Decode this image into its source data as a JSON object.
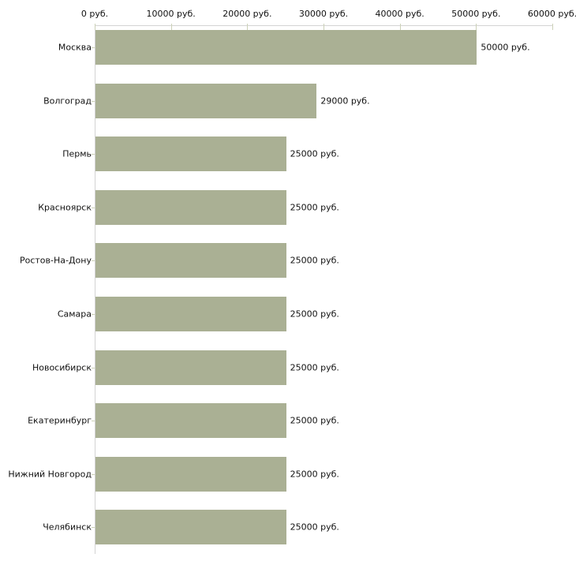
{
  "chart_data": {
    "type": "bar",
    "orientation": "horizontal",
    "title": "",
    "xlabel": "",
    "ylabel": "",
    "categories": [
      "Москва",
      "Волгоград",
      "Пермь",
      "Красноярск",
      "Ростов-На-Дону",
      "Самара",
      "Новосибирск",
      "Екатеринбург",
      "Нижний Новгород",
      "Челябинск"
    ],
    "values": [
      50000,
      29000,
      25000,
      25000,
      25000,
      25000,
      25000,
      25000,
      25000,
      25000
    ],
    "value_labels": [
      "50000 руб.",
      "29000 руб.",
      "25000 руб.",
      "25000 руб.",
      "25000 руб.",
      "25000 руб.",
      "25000 руб.",
      "25000 руб.",
      "25000 руб.",
      "25000 руб."
    ],
    "x_axis": {
      "position": "top",
      "xlim": [
        0,
        60000
      ],
      "ticks": [
        0,
        10000,
        20000,
        30000,
        40000,
        50000,
        60000
      ],
      "tick_labels": [
        "0 руб.",
        "10000 руб.",
        "20000 руб.",
        "30000 руб.",
        "40000 руб.",
        "50000 руб.",
        "60000 руб."
      ]
    },
    "grid": false,
    "legend": false,
    "colors": {
      "bar_fill": "#aab094",
      "axis_line": "#d3d3d3",
      "tick_mark": "#ccd1b8",
      "text": "#111111",
      "background": "#ffffff"
    }
  }
}
